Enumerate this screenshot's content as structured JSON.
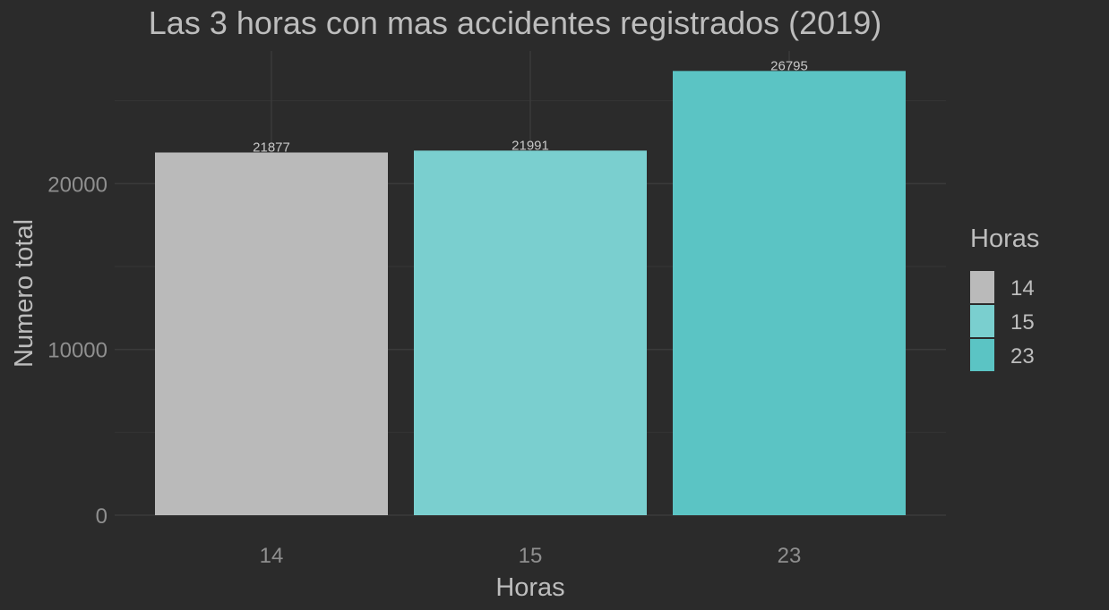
{
  "chart_data": {
    "type": "bar",
    "title": "Las 3 horas con mas accidentes registrados (2019)",
    "xlabel": "Horas",
    "ylabel": "Numero total",
    "categories": [
      "14",
      "15",
      "23"
    ],
    "values": [
      21877,
      21991,
      26795
    ],
    "data_labels": [
      "21877",
      "21991",
      "26795"
    ],
    "colors": [
      "#bababa",
      "#7acfcf",
      "#5bc4c4"
    ],
    "ylim": [
      0,
      28000
    ],
    "yticks": [
      0,
      10000,
      20000
    ],
    "ytick_labels": [
      "0",
      "10000",
      "20000"
    ],
    "ygrid_minor": [
      5000,
      15000,
      25000
    ],
    "grid": true,
    "legend": {
      "title": "Horas",
      "placement": "right",
      "entries": [
        "14",
        "15",
        "23"
      ]
    }
  }
}
